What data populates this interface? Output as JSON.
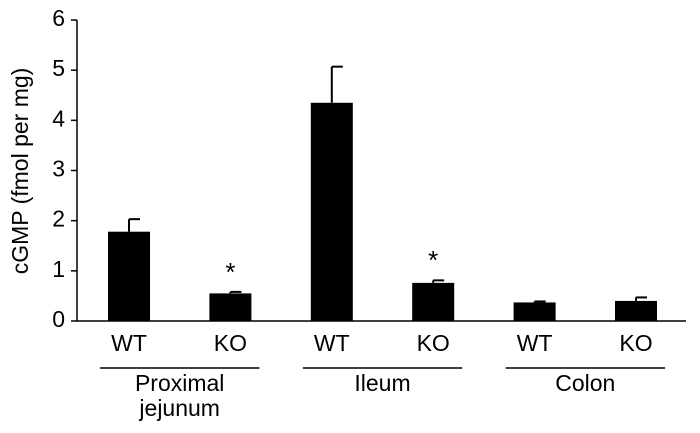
{
  "chart_data": {
    "type": "bar",
    "y_label": "cGMP (fmol per mg)",
    "categories": [
      "WT",
      "KO",
      "WT",
      "KO",
      "WT",
      "KO"
    ],
    "groups": [
      [
        "Proximal",
        "jejunum"
      ],
      [
        "Ileum"
      ],
      [
        "Colon"
      ]
    ],
    "values": [
      1.78,
      0.55,
      4.35,
      0.76,
      0.37,
      0.4
    ],
    "errors": [
      0.25,
      0.03,
      0.72,
      0.05,
      0.02,
      0.07
    ],
    "significance": [
      null,
      "*",
      null,
      "*",
      null,
      null
    ],
    "color": "#000000",
    "ylim": [
      0,
      6
    ],
    "yticks": [
      0,
      1,
      2,
      3,
      4,
      5,
      6
    ],
    "grid": false
  }
}
